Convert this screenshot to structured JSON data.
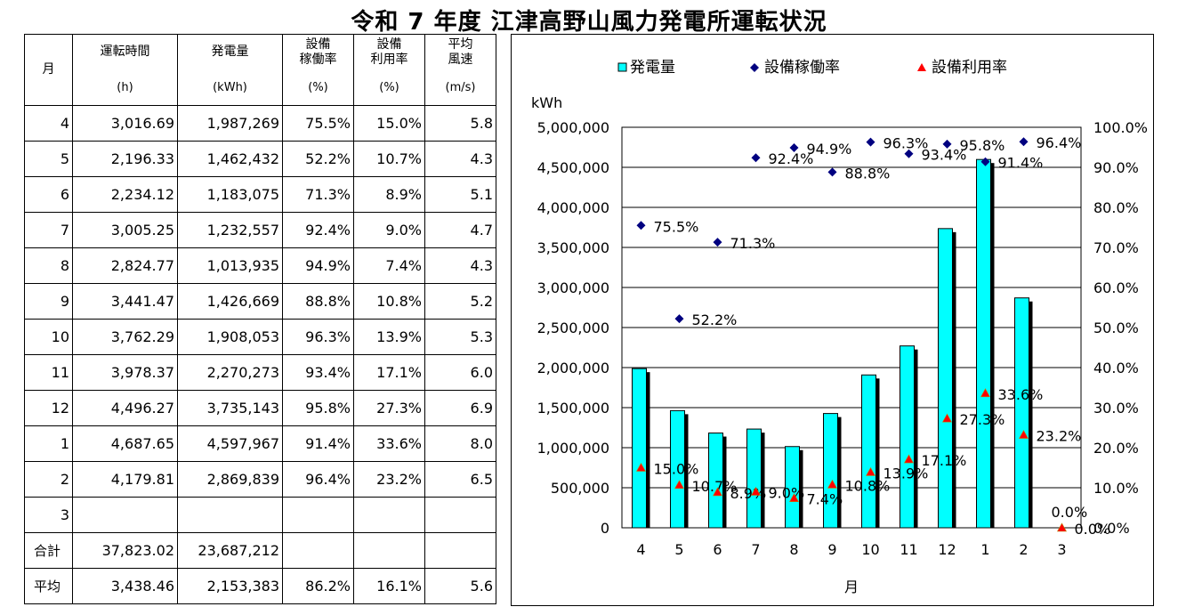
{
  "title": "令和 7 年度 江津高野山風力発電所運転状況",
  "table": {
    "headers": {
      "month": "月",
      "hours": "運転時間",
      "hours_unit": "(h)",
      "energy": "発電量",
      "energy_unit": "(kWh)",
      "availability_1": "設備",
      "availability_2": "稼働率",
      "availability_unit": "(%)",
      "capacity_1": "設備",
      "capacity_2": "利用率",
      "capacity_unit": "(%)",
      "wind_1": "平均",
      "wind_2": "風速",
      "wind_unit": "(m/s)"
    },
    "rows": [
      {
        "month": "4",
        "hours": "3,016.69",
        "energy": "1,987,269",
        "availability": "75.5%",
        "capacity": "15.0%",
        "wind": "5.8"
      },
      {
        "month": "5",
        "hours": "2,196.33",
        "energy": "1,462,432",
        "availability": "52.2%",
        "capacity": "10.7%",
        "wind": "4.3"
      },
      {
        "month": "6",
        "hours": "2,234.12",
        "energy": "1,183,075",
        "availability": "71.3%",
        "capacity": "8.9%",
        "wind": "5.1"
      },
      {
        "month": "7",
        "hours": "3,005.25",
        "energy": "1,232,557",
        "availability": "92.4%",
        "capacity": "9.0%",
        "wind": "4.7"
      },
      {
        "month": "8",
        "hours": "2,824.77",
        "energy": "1,013,935",
        "availability": "94.9%",
        "capacity": "7.4%",
        "wind": "4.3"
      },
      {
        "month": "9",
        "hours": "3,441.47",
        "energy": "1,426,669",
        "availability": "88.8%",
        "capacity": "10.8%",
        "wind": "5.2"
      },
      {
        "month": "10",
        "hours": "3,762.29",
        "energy": "1,908,053",
        "availability": "96.3%",
        "capacity": "13.9%",
        "wind": "5.3"
      },
      {
        "month": "11",
        "hours": "3,978.37",
        "energy": "2,270,273",
        "availability": "93.4%",
        "capacity": "17.1%",
        "wind": "6.0"
      },
      {
        "month": "12",
        "hours": "4,496.27",
        "energy": "3,735,143",
        "availability": "95.8%",
        "capacity": "27.3%",
        "wind": "6.9"
      },
      {
        "month": "1",
        "hours": "4,687.65",
        "energy": "4,597,967",
        "availability": "91.4%",
        "capacity": "33.6%",
        "wind": "8.0"
      },
      {
        "month": "2",
        "hours": "4,179.81",
        "energy": "2,869,839",
        "availability": "96.4%",
        "capacity": "23.2%",
        "wind": "6.5"
      },
      {
        "month": "3",
        "hours": "",
        "energy": "",
        "availability": "",
        "capacity": "",
        "wind": ""
      }
    ],
    "total": {
      "label": "合計",
      "hours": "37,823.02",
      "energy": "23,687,212"
    },
    "average": {
      "label": "平均",
      "hours": "3,438.46",
      "energy": "2,153,383",
      "availability": "86.2%",
      "capacity": "16.1%",
      "wind": "5.6"
    }
  },
  "chart_data": {
    "type": "bar",
    "categories": [
      "4",
      "5",
      "6",
      "7",
      "8",
      "9",
      "10",
      "11",
      "12",
      "1",
      "2",
      "3"
    ],
    "xlabel": "月",
    "ylabel": "kWh",
    "ylim": [
      0,
      5000000
    ],
    "y_ticks": [
      "0",
      "500,000",
      "1,000,000",
      "1,500,000",
      "2,000,000",
      "2,500,000",
      "3,000,000",
      "3,500,000",
      "4,000,000",
      "4,500,000",
      "5,000,000"
    ],
    "y2lim": [
      0,
      100
    ],
    "y2_ticks": [
      "0.0%",
      "10.0%",
      "20.0%",
      "30.0%",
      "40.0%",
      "50.0%",
      "60.0%",
      "70.0%",
      "80.0%",
      "90.0%",
      "100.0%"
    ],
    "legend_position": "top",
    "series": [
      {
        "name": "発電量",
        "type": "bar",
        "axis": "left",
        "color": "#00ffff",
        "values": [
          1987269,
          1462432,
          1183075,
          1232557,
          1013935,
          1426669,
          1908053,
          2270273,
          3735143,
          4597967,
          2869839,
          0
        ]
      },
      {
        "name": "設備稼働率",
        "type": "scatter",
        "marker": "diamond",
        "axis": "right",
        "color": "#000080",
        "values": [
          75.5,
          52.2,
          71.3,
          92.4,
          94.9,
          88.8,
          96.3,
          93.4,
          95.8,
          91.4,
          96.4,
          null
        ],
        "labels": [
          "75.5%",
          "52.2%",
          "71.3%",
          "92.4%",
          "94.9%",
          "88.8%",
          "96.3%",
          "93.4%",
          "95.8%",
          "91.4%",
          "96.4%",
          ""
        ]
      },
      {
        "name": "設備利用率",
        "type": "scatter",
        "marker": "triangle",
        "axis": "right",
        "color": "#ff0000",
        "values": [
          15.0,
          10.7,
          8.9,
          9.0,
          7.4,
          10.8,
          13.9,
          17.1,
          27.3,
          33.6,
          23.2,
          0.0
        ],
        "labels": [
          "15.0%",
          "10.7%",
          "8.9%",
          "9.0%",
          "7.4%",
          "10.8%",
          "13.9%",
          "17.1%",
          "27.3%",
          "33.6%",
          "23.2%",
          "0.0%"
        ]
      }
    ],
    "extra_labels": [
      "0.0%"
    ]
  }
}
